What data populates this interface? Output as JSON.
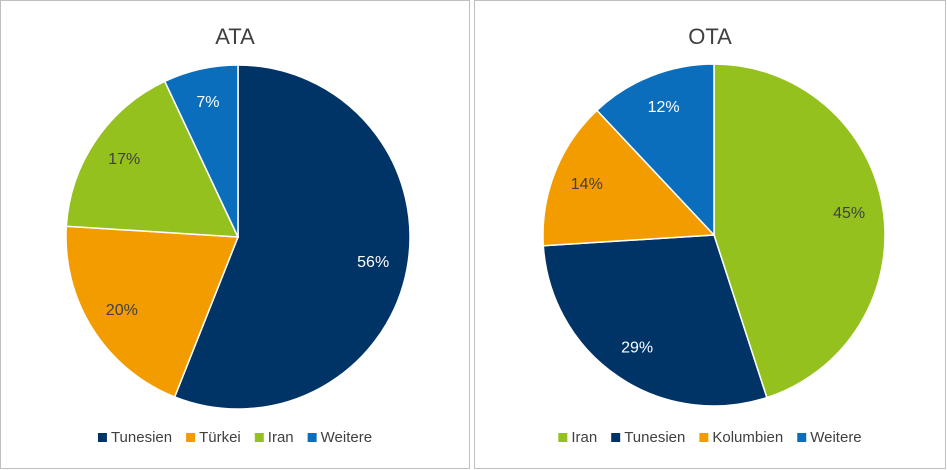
{
  "chart_data": [
    {
      "type": "pie",
      "title": "ATA",
      "categories": [
        "Tunesien",
        "Türkei",
        "Iran",
        "Weitere"
      ],
      "values": [
        56,
        20,
        17,
        7
      ],
      "value_labels": [
        "56%",
        "20%",
        "17%",
        "7%"
      ],
      "colors": [
        "#003366",
        "#f39c00",
        "#95c11f",
        "#0a6ebd"
      ],
      "legend": "bottom"
    },
    {
      "type": "pie",
      "title": "OTA",
      "categories": [
        "Iran",
        "Tunesien",
        "Kolumbien",
        "Weitere"
      ],
      "values": [
        45,
        29,
        14,
        12
      ],
      "value_labels": [
        "45%",
        "29%",
        "14%",
        "12%"
      ],
      "colors": [
        "#95c11f",
        "#003366",
        "#f39c00",
        "#0a6ebd"
      ],
      "legend": "bottom"
    }
  ]
}
